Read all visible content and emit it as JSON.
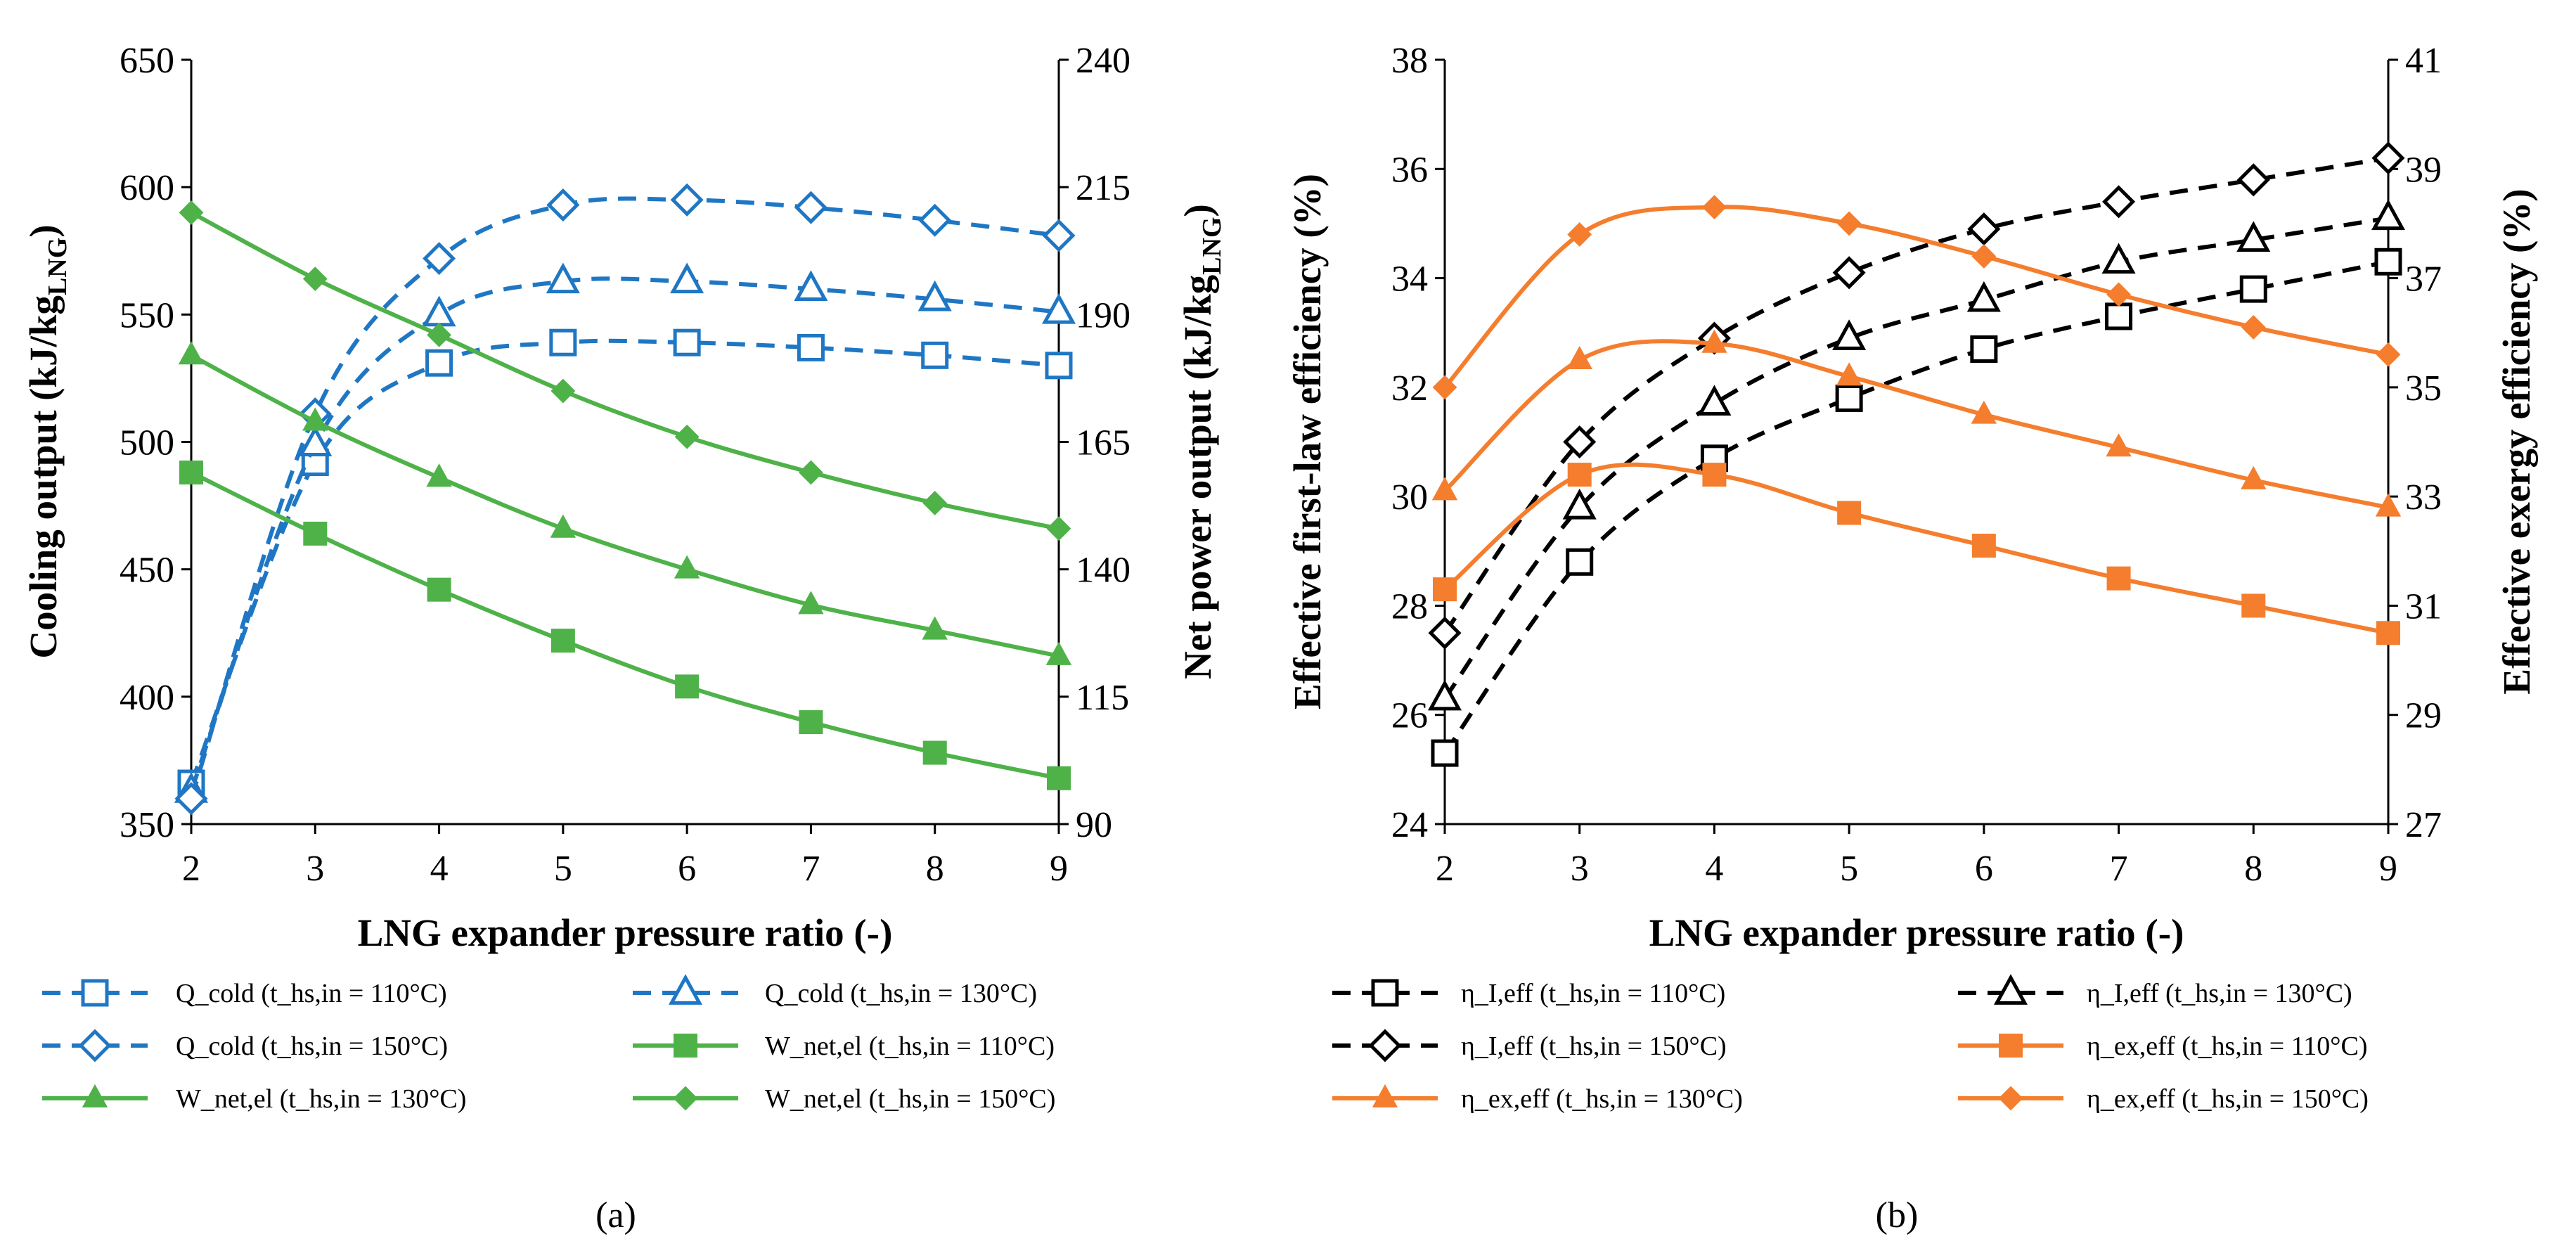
{
  "panels": [
    {
      "id": "a",
      "panel_label": "(a)",
      "legend": [
        {
          "text": "Q_cold (t_hs,in = 110°C)"
        },
        {
          "text": "Q_cold (t_hs,in = 130°C)"
        },
        {
          "text": "Q_cold (t_hs,in = 150°C)"
        },
        {
          "text": "W_net,el (t_hs,in = 110°C)"
        },
        {
          "text": "W_net,el (t_hs,in = 130°C)"
        },
        {
          "text": "W_net,el (t_hs,in = 150°C)"
        }
      ]
    },
    {
      "id": "b",
      "panel_label": "(b)",
      "legend": [
        {
          "text": "η_I,eff (t_hs,in = 110°C)"
        },
        {
          "text": "η_I,eff (t_hs,in = 130°C)"
        },
        {
          "text": "η_I,eff (t_hs,in = 150°C)"
        },
        {
          "text": "η_ex,eff (t_hs,in = 110°C)"
        },
        {
          "text": "η_ex,eff (t_hs,in = 130°C)"
        },
        {
          "text": "η_ex,eff (t_hs,in = 150°C)"
        }
      ]
    }
  ],
  "colors": {
    "blue": "#1f77c4",
    "green": "#4eb249",
    "black": "#000000",
    "orange": "#f47e2e"
  },
  "chart_data": [
    {
      "type": "line",
      "panel": "a",
      "xlabel": "LNG expander pressure ratio (-)",
      "ylabel": {
        "main": "Cooling output (kJ/kg",
        "sub": "LNG",
        "close": ")"
      },
      "y2label": {
        "main": "Net power output (kJ/kg",
        "sub": "LNG",
        "close": ")"
      },
      "x": [
        2,
        3,
        4,
        5,
        6,
        7,
        8,
        9
      ],
      "xlim": [
        2,
        9
      ],
      "ylim": [
        350,
        650
      ],
      "y2lim": [
        90,
        240
      ],
      "xticks": [
        2,
        3,
        4,
        5,
        6,
        7,
        8,
        9
      ],
      "yticks": [
        350,
        400,
        450,
        500,
        550,
        600,
        650
      ],
      "y2ticks": [
        90,
        115,
        140,
        165,
        190,
        215,
        240
      ],
      "series": [
        {
          "name": "Q_cold (t_hs,in = 110°C)",
          "axis": "left",
          "color": "blue",
          "dash": true,
          "marker": "square-open",
          "values": [
            366,
            492,
            531,
            539,
            539,
            537,
            534,
            530
          ]
        },
        {
          "name": "Q_cold (t_hs,in = 130°C)",
          "axis": "left",
          "color": "blue",
          "dash": true,
          "marker": "triangle-open",
          "values": [
            363,
            499,
            550,
            563,
            563,
            560,
            556,
            551
          ]
        },
        {
          "name": "Q_cold (t_hs,in = 150°C)",
          "axis": "left",
          "color": "blue",
          "dash": true,
          "marker": "diamond-open",
          "values": [
            360,
            511,
            572,
            593,
            595,
            592,
            587,
            581
          ]
        },
        {
          "name": "W_net,el (t_hs,in = 110°C)",
          "axis": "right",
          "color": "green",
          "dash": false,
          "marker": "square-filled",
          "values": [
            159,
            147,
            136,
            126,
            117,
            110,
            104,
            99
          ]
        },
        {
          "name": "W_net,el (t_hs,in = 130°C)",
          "axis": "right",
          "color": "green",
          "dash": false,
          "marker": "triangle-filled",
          "values": [
            182,
            169,
            158,
            148,
            140,
            133,
            128,
            123
          ]
        },
        {
          "name": "W_net,el (t_hs,in = 150°C)",
          "axis": "right",
          "color": "green",
          "dash": false,
          "marker": "diamond-filled",
          "values": [
            210,
            197,
            186,
            175,
            166,
            159,
            153,
            148
          ]
        }
      ]
    },
    {
      "type": "line",
      "panel": "b",
      "xlabel": "LNG expander pressure ratio (-)",
      "ylabel": {
        "main": "Effective first-law efficiency (%)"
      },
      "y2label": {
        "main": "Effective exergy efficiency (%)"
      },
      "x": [
        2,
        3,
        4,
        5,
        6,
        7,
        8,
        9
      ],
      "xlim": [
        2,
        9
      ],
      "ylim": [
        24,
        38
      ],
      "y2lim": [
        27,
        41
      ],
      "xticks": [
        2,
        3,
        4,
        5,
        6,
        7,
        8,
        9
      ],
      "yticks": [
        24,
        26,
        28,
        30,
        32,
        34,
        36,
        38
      ],
      "y2ticks": [
        27,
        29,
        31,
        33,
        35,
        37,
        39,
        41
      ],
      "series": [
        {
          "name": "η_I,eff (t_hs,in = 110°C)",
          "axis": "left",
          "color": "black",
          "dash": true,
          "marker": "square-open",
          "values": [
            25.3,
            28.8,
            30.7,
            31.8,
            32.7,
            33.3,
            33.8,
            34.3
          ]
        },
        {
          "name": "η_I,eff (t_hs,in = 130°C)",
          "axis": "left",
          "color": "black",
          "dash": true,
          "marker": "triangle-open",
          "values": [
            26.3,
            29.8,
            31.7,
            32.9,
            33.6,
            34.3,
            34.7,
            35.1
          ]
        },
        {
          "name": "η_I,eff (t_hs,in = 150°C)",
          "axis": "left",
          "color": "black",
          "dash": true,
          "marker": "diamond-open",
          "values": [
            27.5,
            31.0,
            32.9,
            34.1,
            34.9,
            35.4,
            35.8,
            36.2
          ]
        },
        {
          "name": "η_ex,eff (t_hs,in = 110°C)",
          "axis": "right",
          "color": "orange",
          "dash": false,
          "marker": "square-filled",
          "values": [
            31.3,
            33.4,
            33.4,
            32.7,
            32.1,
            31.5,
            31.0,
            30.5
          ]
        },
        {
          "name": "η_ex,eff (t_hs,in = 130°C)",
          "axis": "right",
          "color": "orange",
          "dash": false,
          "marker": "triangle-filled",
          "values": [
            33.1,
            35.5,
            35.8,
            35.2,
            34.5,
            33.9,
            33.3,
            32.8
          ]
        },
        {
          "name": "η_ex,eff (t_hs,in = 150°C)",
          "axis": "right",
          "color": "orange",
          "dash": false,
          "marker": "diamond-filled",
          "values": [
            35.0,
            37.8,
            38.3,
            38.0,
            37.4,
            36.7,
            36.1,
            35.6
          ]
        }
      ]
    }
  ]
}
